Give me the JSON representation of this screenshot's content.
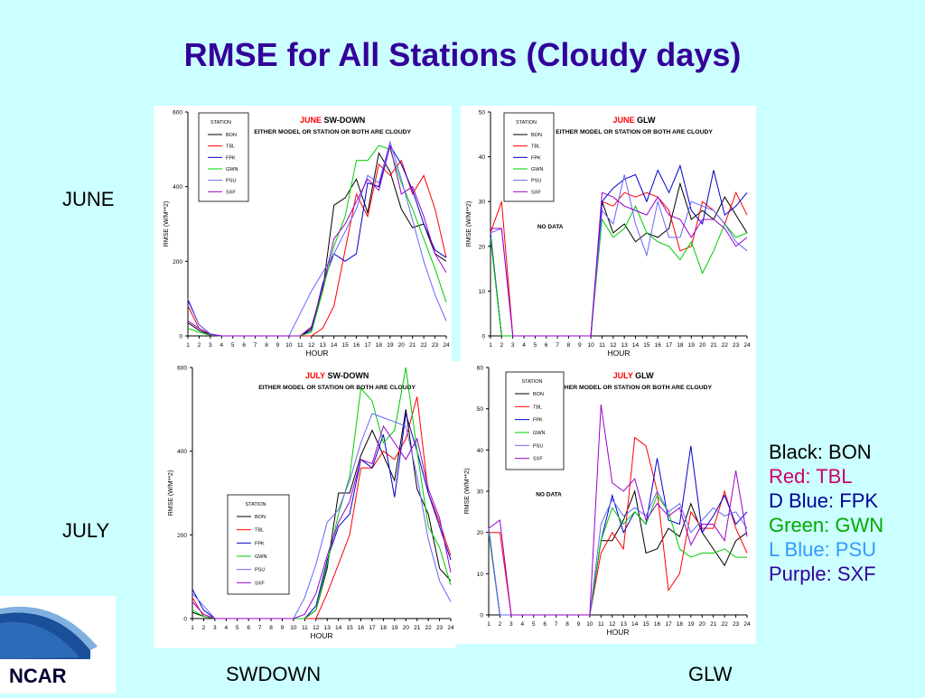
{
  "title": "RMSE for All Stations (Cloudy days)",
  "row_labels": [
    "JUNE",
    "JULY"
  ],
  "col_labels": [
    "SWDOWN",
    "GLW"
  ],
  "logo_text": "NCAR",
  "legend": [
    {
      "label": "Black: BON",
      "color": "#000000"
    },
    {
      "label": "Red:  TBL",
      "color": "#cc0066"
    },
    {
      "label": "D Blue: FPK",
      "color": "#000099"
    },
    {
      "label": "Green: GWN",
      "color": "#00aa00"
    },
    {
      "label": "L Blue: PSU",
      "color": "#3399ff"
    },
    {
      "label": "Purple: SXF",
      "color": "#330099"
    }
  ],
  "chart_data": [
    {
      "type": "line",
      "month": "JUNE",
      "variable": "SW-DOWN",
      "subtitle": "EITHER MODEL OR STATION OR BOTH ARE CLOUDY",
      "xlabel": "HOUR",
      "ylabel": "RMSE (W/M**2)",
      "ylim": [
        0,
        600
      ],
      "yticks": [
        0,
        200,
        400,
        600
      ],
      "x": [
        1,
        2,
        3,
        4,
        5,
        6,
        7,
        8,
        9,
        10,
        11,
        12,
        13,
        14,
        15,
        16,
        17,
        18,
        19,
        20,
        21,
        22,
        23,
        24
      ],
      "legend_title": "STATION",
      "legend_position": "top-left",
      "series": [
        {
          "name": "BON",
          "color": "#000000",
          "values": [
            35,
            15,
            2,
            0,
            0,
            0,
            0,
            0,
            0,
            0,
            0,
            20,
            120,
            350,
            370,
            420,
            330,
            490,
            440,
            340,
            290,
            300,
            220,
            200
          ]
        },
        {
          "name": "TBL",
          "color": "#ff0000",
          "values": [
            80,
            20,
            5,
            0,
            0,
            0,
            0,
            0,
            0,
            0,
            0,
            0,
            20,
            80,
            230,
            380,
            320,
            460,
            430,
            470,
            380,
            430,
            340,
            210
          ]
        },
        {
          "name": "FPK",
          "color": "#0000cc",
          "values": [
            95,
            30,
            5,
            0,
            0,
            0,
            0,
            0,
            0,
            0,
            0,
            15,
            140,
            220,
            200,
            220,
            410,
            400,
            510,
            460,
            390,
            300,
            230,
            210
          ]
        },
        {
          "name": "GWN",
          "color": "#00cc00",
          "values": [
            20,
            10,
            2,
            0,
            0,
            0,
            0,
            0,
            0,
            0,
            0,
            10,
            120,
            240,
            320,
            470,
            470,
            510,
            500,
            410,
            340,
            260,
            180,
            90
          ]
        },
        {
          "name": "PSU",
          "color": "#6666ff",
          "values": [
            100,
            30,
            5,
            0,
            0,
            0,
            0,
            0,
            0,
            0,
            60,
            120,
            170,
            220,
            280,
            340,
            430,
            410,
            520,
            420,
            310,
            200,
            110,
            40
          ]
        },
        {
          "name": "SXF",
          "color": "#9900cc",
          "values": [
            40,
            20,
            3,
            0,
            0,
            0,
            0,
            0,
            0,
            0,
            0,
            25,
            130,
            260,
            300,
            360,
            420,
            390,
            510,
            380,
            400,
            320,
            220,
            170
          ]
        }
      ]
    },
    {
      "type": "line",
      "month": "JUNE",
      "variable": "GLW",
      "subtitle": "EITHER MODEL OR STATION OR BOTH ARE CLOUDY",
      "xlabel": "HOUR",
      "ylabel": "RMSE (W/M**2)",
      "ylim": [
        0,
        50
      ],
      "yticks": [
        0,
        10,
        20,
        30,
        40,
        50
      ],
      "x": [
        1,
        2,
        3,
        4,
        5,
        6,
        7,
        8,
        9,
        10,
        11,
        12,
        13,
        14,
        15,
        16,
        17,
        18,
        19,
        20,
        21,
        22,
        23,
        24
      ],
      "legend_title": "STATION",
      "legend_position": "top-left",
      "annotation": "NO DATA",
      "series": [
        {
          "name": "BON",
          "color": "#000000",
          "values": [
            22,
            0,
            0,
            0,
            0,
            0,
            0,
            0,
            0,
            0,
            30,
            23,
            25,
            21,
            23,
            22,
            24,
            34,
            26,
            28,
            26,
            31,
            27,
            23
          ]
        },
        {
          "name": "TBL",
          "color": "#ff0000",
          "values": [
            23,
            30,
            0,
            0,
            0,
            0,
            0,
            0,
            0,
            0,
            30,
            29,
            32,
            31,
            32,
            31,
            28,
            19,
            20,
            30,
            28,
            25,
            32,
            27
          ]
        },
        {
          "name": "FPK",
          "color": "#0000cc",
          "values": [
            23,
            0,
            0,
            0,
            0,
            0,
            0,
            0,
            0,
            0,
            30,
            33,
            35,
            36,
            30,
            37,
            32,
            38,
            28,
            25,
            37,
            27,
            29,
            32
          ]
        },
        {
          "name": "GWN",
          "color": "#00cc00",
          "values": [
            22,
            0,
            0,
            0,
            0,
            0,
            0,
            0,
            0,
            0,
            26,
            22,
            24,
            29,
            23,
            21,
            20,
            17,
            21,
            14,
            19,
            25,
            22,
            23
          ]
        },
        {
          "name": "PSU",
          "color": "#6666ff",
          "values": [
            23,
            24,
            0,
            0,
            0,
            0,
            0,
            0,
            0,
            0,
            28,
            25,
            36,
            25,
            18,
            30,
            22,
            22,
            30,
            29,
            28,
            25,
            21,
            19
          ]
        },
        {
          "name": "SXF",
          "color": "#9900cc",
          "values": [
            24,
            24,
            0,
            0,
            0,
            0,
            0,
            0,
            0,
            0,
            32,
            31,
            29,
            28,
            27,
            31,
            27,
            26,
            22,
            26,
            26,
            24,
            20,
            22
          ]
        }
      ]
    },
    {
      "type": "line",
      "month": "JULY",
      "variable": "SW-DOWN",
      "subtitle": "EITHER MODEL OR STATION OR BOTH ARE CLOUDY",
      "xlabel": "HOUR",
      "ylabel": "RMSE (W/M**2)",
      "ylim": [
        0,
        600
      ],
      "yticks": [
        0,
        200,
        400,
        600
      ],
      "x": [
        1,
        2,
        3,
        4,
        5,
        6,
        7,
        8,
        9,
        10,
        11,
        12,
        13,
        14,
        15,
        16,
        17,
        18,
        19,
        20,
        21,
        22,
        23,
        24
      ],
      "legend_title": "STATION",
      "legend_position": "bottom-left",
      "series": [
        {
          "name": "BON",
          "color": "#000000",
          "values": [
            15,
            5,
            0,
            0,
            0,
            0,
            0,
            0,
            0,
            0,
            0,
            20,
            120,
            300,
            300,
            390,
            450,
            390,
            330,
            500,
            310,
            250,
            120,
            90
          ]
        },
        {
          "name": "TBL",
          "color": "#ff0000",
          "values": [
            50,
            5,
            0,
            0,
            0,
            0,
            0,
            0,
            0,
            0,
            0,
            0,
            60,
            130,
            200,
            360,
            360,
            400,
            380,
            430,
            530,
            300,
            230,
            150
          ]
        },
        {
          "name": "FPK",
          "color": "#0000cc",
          "values": [
            70,
            20,
            0,
            0,
            0,
            0,
            0,
            0,
            0,
            0,
            0,
            30,
            140,
            220,
            250,
            380,
            360,
            440,
            290,
            490,
            400,
            300,
            220,
            140
          ]
        },
        {
          "name": "GWN",
          "color": "#00cc00",
          "values": [
            20,
            5,
            0,
            0,
            0,
            0,
            0,
            0,
            0,
            0,
            0,
            20,
            130,
            250,
            340,
            550,
            520,
            420,
            450,
            600,
            400,
            220,
            170,
            80
          ]
        },
        {
          "name": "PSU",
          "color": "#6666ff",
          "values": [
            60,
            30,
            0,
            0,
            0,
            0,
            0,
            0,
            0,
            0,
            50,
            130,
            230,
            260,
            330,
            420,
            490,
            480,
            470,
            460,
            340,
            190,
            90,
            40
          ]
        },
        {
          "name": "SXF",
          "color": "#9900cc",
          "values": [
            40,
            10,
            0,
            0,
            0,
            0,
            0,
            0,
            0,
            0,
            10,
            60,
            150,
            230,
            280,
            380,
            370,
            460,
            420,
            380,
            430,
            310,
            240,
            110
          ]
        }
      ]
    },
    {
      "type": "line",
      "month": "JULY",
      "variable": "GLW",
      "subtitle": "EITHER MODEL OR STATION OR BOTH ARE CLOUDY",
      "xlabel": "HOUR",
      "ylabel": "RMSE (W/M**2)",
      "ylim": [
        0,
        60
      ],
      "yticks": [
        0,
        10,
        20,
        30,
        40,
        50,
        60
      ],
      "x": [
        1,
        2,
        3,
        4,
        5,
        6,
        7,
        8,
        9,
        10,
        11,
        12,
        13,
        14,
        15,
        16,
        17,
        18,
        19,
        20,
        21,
        22,
        23,
        24
      ],
      "legend_title": "STATION",
      "legend_position": "top-left",
      "annotation": "NO DATA",
      "series": [
        {
          "name": "BON",
          "color": "#000000",
          "values": [
            21,
            0,
            0,
            0,
            0,
            0,
            0,
            0,
            0,
            0,
            18,
            18,
            23,
            30,
            15,
            16,
            21,
            19,
            27,
            20,
            16,
            12,
            18,
            20
          ]
        },
        {
          "name": "TBL",
          "color": "#ff0000",
          "values": [
            20,
            20,
            0,
            0,
            0,
            0,
            0,
            0,
            0,
            0,
            15,
            20,
            16,
            43,
            41,
            30,
            6,
            10,
            25,
            21,
            21,
            30,
            21,
            15
          ]
        },
        {
          "name": "FPK",
          "color": "#0000cc",
          "values": [
            20,
            0,
            0,
            0,
            0,
            0,
            0,
            0,
            0,
            0,
            18,
            29,
            20,
            25,
            22,
            38,
            23,
            22,
            41,
            20,
            24,
            29,
            22,
            25
          ]
        },
        {
          "name": "GWN",
          "color": "#00cc00",
          "values": [
            20,
            0,
            0,
            0,
            0,
            0,
            0,
            0,
            0,
            0,
            18,
            26,
            22,
            25,
            22,
            29,
            25,
            16,
            14,
            15,
            15,
            16,
            14,
            14
          ]
        },
        {
          "name": "PSU",
          "color": "#6666ff",
          "values": [
            21,
            0,
            0,
            0,
            0,
            0,
            0,
            0,
            0,
            0,
            22,
            28,
            24,
            26,
            24,
            30,
            25,
            27,
            20,
            23,
            26,
            24,
            25,
            21
          ]
        },
        {
          "name": "SXF",
          "color": "#9900cc",
          "values": [
            21,
            23,
            0,
            0,
            0,
            0,
            0,
            0,
            0,
            0,
            51,
            32,
            30,
            33,
            23,
            27,
            24,
            26,
            17,
            22,
            22,
            18,
            35,
            19
          ]
        }
      ]
    }
  ]
}
